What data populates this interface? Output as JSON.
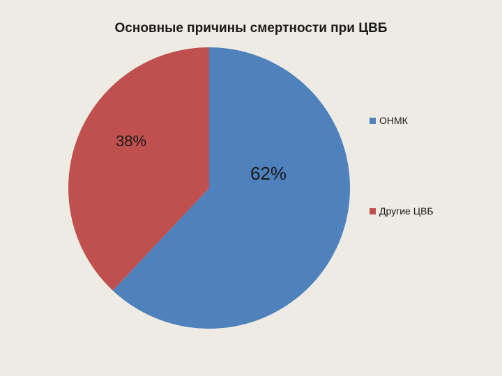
{
  "chart_data": {
    "type": "pie",
    "title": "Основные причины смертности при ЦВБ",
    "categories": [
      "ОНМК",
      "Другие ЦВБ"
    ],
    "values": [
      62,
      38
    ],
    "data_labels": [
      "62%",
      "38%"
    ],
    "colors": [
      "#4f81bd",
      "#c0504d"
    ],
    "legend_position": "right"
  }
}
